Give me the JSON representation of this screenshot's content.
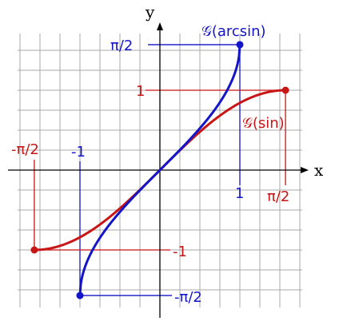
{
  "chart_data": {
    "type": "line",
    "title": "",
    "xlabel": "x",
    "ylabel": "y",
    "xlim": [
      -2.55,
      2.55
    ],
    "ylim": [
      -2.25,
      2.25
    ],
    "grid": true,
    "grid_step": 0.25,
    "colors": {
      "arcsin": "#1515c8",
      "sin": "#c81515",
      "grid": "#a8a8a8",
      "axis": "#000000"
    },
    "series": [
      {
        "name": "𝒢(arcsin)",
        "function": "arcsin",
        "domain": [
          -1,
          1
        ],
        "range": [
          -1.5708,
          1.5708
        ],
        "endpoints": [
          [
            -1,
            -1.5708
          ],
          [
            1,
            1.5708
          ]
        ]
      },
      {
        "name": "𝒢(sin)",
        "function": "sin",
        "domain": [
          -1.5708,
          1.5708
        ],
        "range": [
          -1,
          1
        ],
        "endpoints": [
          [
            -1.5708,
            -1
          ],
          [
            1.5708,
            1
          ]
        ]
      }
    ],
    "tick_labels": {
      "arcsin_top": "π/2",
      "arcsin_bottom": "-π/2",
      "arcsin_x_pos": "1",
      "arcsin_x_neg": "-1",
      "sin_top": "1",
      "sin_bottom": "-1",
      "sin_x_pos": "π/2",
      "sin_x_neg": "-π/2"
    }
  }
}
